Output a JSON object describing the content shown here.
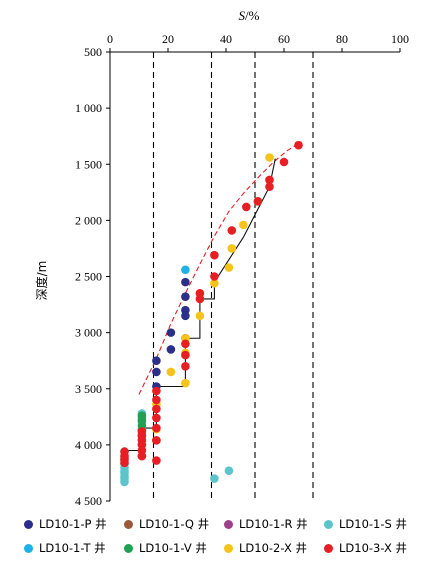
{
  "chart_data": {
    "type": "scatter",
    "xlabel": "S",
    "xunit": "/%",
    "ylabel": "深度/m",
    "xlim": [
      0,
      100
    ],
    "ylim": [
      500,
      4500
    ],
    "y_inverted": true,
    "x_axis_position": "top",
    "xticks": [
      0,
      20,
      40,
      60,
      80,
      100
    ],
    "yticks": [
      500,
      1000,
      1500,
      2000,
      2500,
      3000,
      3500,
      4000,
      4500
    ],
    "ytick_labels": [
      "500",
      "1 000",
      "1 500",
      "2 000",
      "2 500",
      "3 000",
      "3 500",
      "4 000",
      "4 500"
    ],
    "reference_lines_x": [
      15,
      35,
      50,
      70
    ],
    "legend_position": "bottom",
    "series": [
      {
        "name": "LD10-1-P 井",
        "color": "#2b2f8a",
        "x": [
          26,
          26,
          26,
          26,
          21,
          26,
          21,
          16,
          16,
          16
        ],
        "y": [
          2550,
          2680,
          2800,
          2850,
          3000,
          3050,
          3150,
          3250,
          3350,
          3480
        ]
      },
      {
        "name": "LD10-1-Q 井",
        "color": "#9a5a3a",
        "x": [
          16
        ],
        "y": [
          3960
        ]
      },
      {
        "name": "LD10-1-R 井",
        "color": "#a0408c",
        "x": [],
        "y": []
      },
      {
        "name": "LD10-1-S 井",
        "color": "#5ec4cc",
        "x": [
          11,
          11,
          11,
          11,
          11,
          11,
          11,
          5,
          5,
          5,
          5,
          5,
          5,
          5,
          5,
          5,
          5,
          36,
          41
        ],
        "y": [
          3720,
          3760,
          3800,
          3860,
          3900,
          3950,
          4000,
          4060,
          4110,
          4140,
          4170,
          4200,
          4230,
          4250,
          4280,
          4300,
          4330,
          4300,
          4230
        ]
      },
      {
        "name": "LD10-1-T 井",
        "color": "#1fb1e6",
        "x": [
          26
        ],
        "y": [
          2440
        ]
      },
      {
        "name": "LD10-1-V 井",
        "color": "#20a050",
        "x": [
          11,
          11,
          11,
          11,
          11
        ],
        "y": [
          3740,
          3780,
          3830,
          3870,
          3920
        ]
      },
      {
        "name": "LD10-2-X 井",
        "color": "#f6c31a",
        "x": [
          55,
          55,
          51,
          46,
          42,
          41,
          36,
          31,
          31,
          26,
          26,
          21,
          26,
          16,
          16,
          11,
          11
        ],
        "y": [
          1440,
          1640,
          1830,
          2040,
          2250,
          2420,
          2560,
          2650,
          2850,
          3050,
          3180,
          3350,
          3450,
          3640,
          3860,
          4050,
          4100
        ]
      },
      {
        "name": "LD10-3-X 井",
        "color": "#e81e25",
        "x": [
          65,
          60,
          55,
          55,
          51,
          47,
          42,
          36,
          36,
          31,
          31,
          26,
          26,
          26,
          16,
          16,
          16,
          16,
          16,
          16,
          11,
          11,
          11,
          11,
          11,
          11,
          5,
          5,
          5,
          5,
          16
        ],
        "y": [
          1330,
          1480,
          1640,
          1700,
          1830,
          1880,
          2090,
          2310,
          2500,
          2700,
          2650,
          3100,
          3200,
          3300,
          3520,
          3600,
          3680,
          3760,
          3850,
          3960,
          3880,
          3920,
          3960,
          4000,
          4050,
          4100,
          4060,
          4100,
          4130,
          4160,
          4140
        ]
      }
    ],
    "trend_line_x": [
      10,
      16,
      21,
      26,
      31,
      36,
      41,
      46,
      51,
      56,
      61,
      66
    ],
    "trend_line_y": [
      3550,
      3230,
      2920,
      2650,
      2390,
      2140,
      1920,
      1760,
      1620,
      1490,
      1380,
      1300
    ],
    "step_line_x": [
      57,
      55,
      50,
      46,
      41,
      36,
      36,
      31,
      31,
      26,
      26,
      16,
      16,
      11,
      11,
      5,
      5
    ],
    "step_line_y": [
      1450,
      1700,
      1950,
      2150,
      2350,
      2550,
      2700,
      2700,
      3050,
      3050,
      3480,
      3480,
      3850,
      3850,
      4050,
      4050,
      4200
    ]
  }
}
